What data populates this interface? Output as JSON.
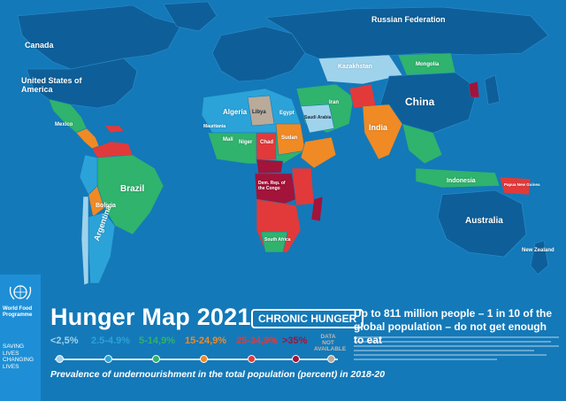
{
  "map": {
    "colors": {
      "ocean": "#1479b8",
      "land_low": "#0e5f99",
      "cat_lt_2_5": "#9fd3ec",
      "cat_2_5_4_9": "#2ba3d8",
      "cat_5_14_9": "#2fb36d",
      "cat_15_24_9": "#f08a24",
      "cat_25_34_9": "#e23a3a",
      "cat_gt_35": "#a3133a",
      "cat_na": "#b9aa99"
    },
    "labels": {
      "russia": "Russian Federation",
      "canada": "Canada",
      "usa": "United States of America",
      "china": "China",
      "india": "India",
      "brazil": "Brazil",
      "argentina": "Argentina",
      "bolivia": "Bolivia",
      "australia": "Australia",
      "new_zealand": "New Zealand",
      "mongolia": "Mongolia",
      "kazakhstan": "Kazakhstan",
      "algeria": "Algeria",
      "libya": "Libya",
      "egypt": "Egypt",
      "sudan": "Sudan",
      "chad": "Chad",
      "niger": "Niger",
      "mali": "Mali",
      "mauritania": "Mauritania",
      "dr_congo": "Dem. Rep. of the Congo",
      "south_africa": "South Africa",
      "indonesia": "Indonesia",
      "iran": "Iran",
      "saudi": "Saudi Arabia",
      "mexico": "Mexico",
      "papua": "Papua New Guinea"
    }
  },
  "branding": {
    "org_name": "World Food Programme",
    "short": "WFP",
    "tagline": "SAVING LIVES CHANGING LIVES"
  },
  "header": {
    "title": "Hunger Map 2021",
    "subtitle": "CHRONIC HUNGER",
    "headline": "Up to 811 million people – 1 in 10 of the global population – do not get enough to eat"
  },
  "legend": {
    "items": [
      {
        "label": "<2,5%",
        "color": "#9fd3ec"
      },
      {
        "label": "2.5-4.9%",
        "color": "#2ba3d8"
      },
      {
        "label": "5-14,9%",
        "color": "#2fb36d"
      },
      {
        "label": "15-24,9%",
        "color": "#f08a24"
      },
      {
        "label": "25-34,9%",
        "color": "#e23a3a"
      },
      {
        "label": ">35%",
        "color": "#a3133a"
      }
    ],
    "na_label": "DATA NOT AVAILABLE",
    "na_color": "#b9aa99",
    "caption": "Prevalence of undernourishment in the total population (percent) in 2018-20"
  }
}
